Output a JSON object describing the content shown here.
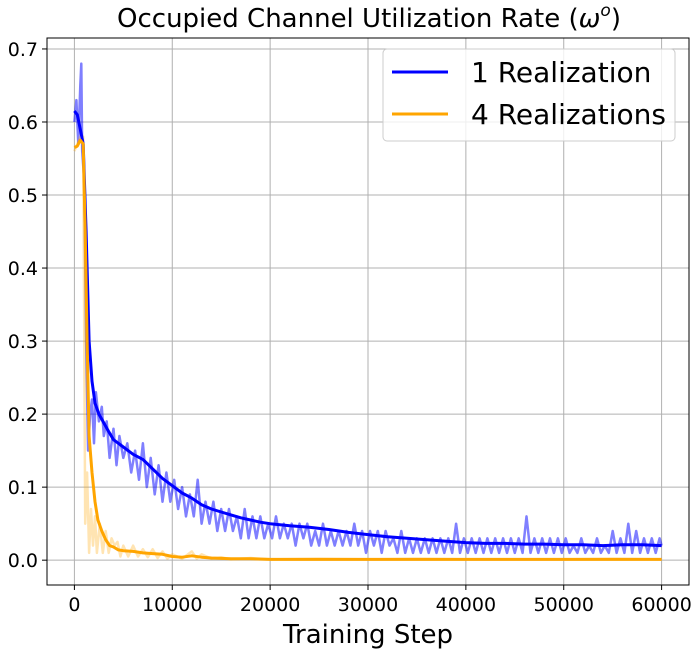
{
  "chart_data": {
    "type": "line",
    "title_main": "Occupied Channel Utilization Rate (",
    "title_symbol": "ω",
    "title_sup": "o",
    "title_close": ")",
    "xlabel": "Training Step",
    "ylabel": "",
    "xlim": [
      -2800,
      62800
    ],
    "ylim": [
      -0.034,
      0.715
    ],
    "xticks": [
      0,
      10000,
      20000,
      30000,
      40000,
      50000,
      60000
    ],
    "xtick_labels": [
      "0",
      "10000",
      "20000",
      "30000",
      "40000",
      "50000",
      "60000"
    ],
    "yticks": [
      0.0,
      0.1,
      0.2,
      0.3,
      0.4,
      0.5,
      0.6,
      0.7
    ],
    "ytick_labels": [
      "0.0",
      "0.1",
      "0.2",
      "0.3",
      "0.4",
      "0.5",
      "0.6",
      "0.7"
    ],
    "grid": true,
    "legend_position": "top-right",
    "series": [
      {
        "name": "1 Realization",
        "color": "#0000ff",
        "raw_opacity": 0.5,
        "smoothed": [
          [
            0,
            0.615
          ],
          [
            300,
            0.61
          ],
          [
            600,
            0.59
          ],
          [
            900,
            0.57
          ],
          [
            1200,
            0.45
          ],
          [
            1500,
            0.3
          ],
          [
            1800,
            0.245
          ],
          [
            2100,
            0.215
          ],
          [
            2500,
            0.2
          ],
          [
            3000,
            0.188
          ],
          [
            3500,
            0.176
          ],
          [
            4000,
            0.165
          ],
          [
            5000,
            0.155
          ],
          [
            6000,
            0.145
          ],
          [
            7000,
            0.138
          ],
          [
            8000,
            0.125
          ],
          [
            9000,
            0.112
          ],
          [
            10000,
            0.102
          ],
          [
            11000,
            0.092
          ],
          [
            12000,
            0.085
          ],
          [
            13000,
            0.076
          ],
          [
            14000,
            0.07
          ],
          [
            15000,
            0.066
          ],
          [
            16000,
            0.062
          ],
          [
            17000,
            0.058
          ],
          [
            18000,
            0.055
          ],
          [
            19000,
            0.052
          ],
          [
            20000,
            0.05
          ],
          [
            22000,
            0.047
          ],
          [
            24000,
            0.045
          ],
          [
            26000,
            0.042
          ],
          [
            28000,
            0.038
          ],
          [
            30000,
            0.035
          ],
          [
            32000,
            0.032
          ],
          [
            34000,
            0.03
          ],
          [
            36000,
            0.028
          ],
          [
            38000,
            0.026
          ],
          [
            40000,
            0.024
          ],
          [
            42000,
            0.023
          ],
          [
            44000,
            0.023
          ],
          [
            46000,
            0.022
          ],
          [
            48000,
            0.022
          ],
          [
            50000,
            0.021
          ],
          [
            52000,
            0.021
          ],
          [
            54000,
            0.02
          ],
          [
            56000,
            0.021
          ],
          [
            58000,
            0.021
          ],
          [
            60000,
            0.02
          ]
        ],
        "raw": [
          [
            0,
            0.6
          ],
          [
            200,
            0.63
          ],
          [
            400,
            0.57
          ],
          [
            600,
            0.65
          ],
          [
            700,
            0.68
          ],
          [
            800,
            0.56
          ],
          [
            1000,
            0.52
          ],
          [
            1200,
            0.3
          ],
          [
            1400,
            0.15
          ],
          [
            1600,
            0.2
          ],
          [
            1800,
            0.22
          ],
          [
            2000,
            0.16
          ],
          [
            2200,
            0.23
          ],
          [
            2500,
            0.19
          ],
          [
            2800,
            0.21
          ],
          [
            3000,
            0.17
          ],
          [
            3300,
            0.19
          ],
          [
            3600,
            0.14
          ],
          [
            4000,
            0.18
          ],
          [
            4300,
            0.13
          ],
          [
            4600,
            0.17
          ],
          [
            5000,
            0.14
          ],
          [
            5400,
            0.16
          ],
          [
            5800,
            0.12
          ],
          [
            6200,
            0.15
          ],
          [
            6600,
            0.11
          ],
          [
            7000,
            0.16
          ],
          [
            7400,
            0.1
          ],
          [
            7800,
            0.14
          ],
          [
            8200,
            0.09
          ],
          [
            8600,
            0.13
          ],
          [
            9000,
            0.08
          ],
          [
            9400,
            0.12
          ],
          [
            9800,
            0.08
          ],
          [
            10200,
            0.11
          ],
          [
            10600,
            0.07
          ],
          [
            11000,
            0.1
          ],
          [
            11400,
            0.06
          ],
          [
            11800,
            0.09
          ],
          [
            12200,
            0.06
          ],
          [
            12600,
            0.11
          ],
          [
            13000,
            0.05
          ],
          [
            13400,
            0.08
          ],
          [
            13800,
            0.05
          ],
          [
            14200,
            0.08
          ],
          [
            14600,
            0.04
          ],
          [
            15000,
            0.07
          ],
          [
            15400,
            0.04
          ],
          [
            15800,
            0.07
          ],
          [
            16200,
            0.04
          ],
          [
            16600,
            0.06
          ],
          [
            17000,
            0.03
          ],
          [
            17400,
            0.07
          ],
          [
            17800,
            0.03
          ],
          [
            18200,
            0.06
          ],
          [
            18600,
            0.03
          ],
          [
            19000,
            0.06
          ],
          [
            19400,
            0.03
          ],
          [
            19800,
            0.05
          ],
          [
            20200,
            0.03
          ],
          [
            20600,
            0.06
          ],
          [
            21000,
            0.03
          ],
          [
            21400,
            0.05
          ],
          [
            21800,
            0.03
          ],
          [
            22200,
            0.05
          ],
          [
            22600,
            0.02
          ],
          [
            23000,
            0.05
          ],
          [
            23400,
            0.03
          ],
          [
            23800,
            0.05
          ],
          [
            24200,
            0.02
          ],
          [
            24600,
            0.04
          ],
          [
            25000,
            0.02
          ],
          [
            25400,
            0.05
          ],
          [
            25800,
            0.02
          ],
          [
            26200,
            0.04
          ],
          [
            26600,
            0.02
          ],
          [
            27000,
            0.04
          ],
          [
            27400,
            0.02
          ],
          [
            27800,
            0.04
          ],
          [
            28200,
            0.02
          ],
          [
            28600,
            0.05
          ],
          [
            29000,
            0.02
          ],
          [
            29400,
            0.04
          ],
          [
            29800,
            0.01
          ],
          [
            30200,
            0.04
          ],
          [
            30600,
            0.02
          ],
          [
            31000,
            0.04
          ],
          [
            31400,
            0.01
          ],
          [
            31800,
            0.04
          ],
          [
            32200,
            0.02
          ],
          [
            32600,
            0.03
          ],
          [
            33000,
            0.01
          ],
          [
            33400,
            0.04
          ],
          [
            33800,
            0.01
          ],
          [
            34200,
            0.03
          ],
          [
            34600,
            0.01
          ],
          [
            35000,
            0.03
          ],
          [
            35400,
            0.01
          ],
          [
            35800,
            0.03
          ],
          [
            36200,
            0.01
          ],
          [
            36600,
            0.03
          ],
          [
            37000,
            0.01
          ],
          [
            37400,
            0.03
          ],
          [
            37800,
            0.01
          ],
          [
            38200,
            0.03
          ],
          [
            38600,
            0.01
          ],
          [
            39000,
            0.05
          ],
          [
            39400,
            0.01
          ],
          [
            39800,
            0.03
          ],
          [
            40200,
            0.01
          ],
          [
            40600,
            0.03
          ],
          [
            41000,
            0.01
          ],
          [
            41400,
            0.03
          ],
          [
            41800,
            0.01
          ],
          [
            42200,
            0.03
          ],
          [
            42600,
            0.01
          ],
          [
            43000,
            0.03
          ],
          [
            43400,
            0.01
          ],
          [
            43800,
            0.03
          ],
          [
            44200,
            0.01
          ],
          [
            44600,
            0.03
          ],
          [
            45000,
            0.01
          ],
          [
            45400,
            0.03
          ],
          [
            45800,
            0.01
          ],
          [
            46200,
            0.06
          ],
          [
            46600,
            0.01
          ],
          [
            47000,
            0.03
          ],
          [
            47400,
            0.01
          ],
          [
            47800,
            0.03
          ],
          [
            48200,
            0.01
          ],
          [
            48600,
            0.03
          ],
          [
            49000,
            0.01
          ],
          [
            49400,
            0.03
          ],
          [
            49800,
            0.01
          ],
          [
            50200,
            0.03
          ],
          [
            50600,
            0.01
          ],
          [
            51000,
            0.02
          ],
          [
            51400,
            0.01
          ],
          [
            51800,
            0.03
          ],
          [
            52200,
            0.01
          ],
          [
            52600,
            0.02
          ],
          [
            53000,
            0.01
          ],
          [
            53400,
            0.03
          ],
          [
            53800,
            0.01
          ],
          [
            54200,
            0.02
          ],
          [
            54600,
            0.01
          ],
          [
            55000,
            0.04
          ],
          [
            55400,
            0.01
          ],
          [
            55800,
            0.03
          ],
          [
            56200,
            0.01
          ],
          [
            56600,
            0.05
          ],
          [
            57000,
            0.01
          ],
          [
            57400,
            0.04
          ],
          [
            57800,
            0.01
          ],
          [
            58200,
            0.03
          ],
          [
            58600,
            0.01
          ],
          [
            59000,
            0.03
          ],
          [
            59400,
            0.01
          ],
          [
            59800,
            0.03
          ],
          [
            60000,
            0.02
          ]
        ]
      },
      {
        "name": "4 Realizations",
        "color": "#ffa500",
        "raw_opacity": 0.3,
        "smoothed": [
          [
            0,
            0.565
          ],
          [
            300,
            0.567
          ],
          [
            600,
            0.575
          ],
          [
            900,
            0.57
          ],
          [
            1100,
            0.45
          ],
          [
            1300,
            0.3
          ],
          [
            1500,
            0.17
          ],
          [
            1800,
            0.12
          ],
          [
            2100,
            0.08
          ],
          [
            2400,
            0.055
          ],
          [
            2800,
            0.04
          ],
          [
            3200,
            0.028
          ],
          [
            3600,
            0.02
          ],
          [
            4000,
            0.018
          ],
          [
            4500,
            0.014
          ],
          [
            5000,
            0.013
          ],
          [
            6000,
            0.012
          ],
          [
            7000,
            0.01
          ],
          [
            8000,
            0.009
          ],
          [
            9000,
            0.008
          ],
          [
            10000,
            0.005
          ],
          [
            11000,
            0.004
          ],
          [
            12000,
            0.006
          ],
          [
            13000,
            0.004
          ],
          [
            14000,
            0.003
          ],
          [
            16000,
            0.002
          ],
          [
            18000,
            0.002
          ],
          [
            20000,
            0.001
          ],
          [
            25000,
            0.001
          ],
          [
            30000,
            0.001
          ],
          [
            35000,
            0.001
          ],
          [
            40000,
            0.001
          ],
          [
            45000,
            0.001
          ],
          [
            50000,
            0.001
          ],
          [
            55000,
            0.001
          ],
          [
            60000,
            0.001
          ]
        ],
        "raw": [
          [
            0,
            0.56
          ],
          [
            300,
            0.57
          ],
          [
            600,
            0.58
          ],
          [
            900,
            0.58
          ],
          [
            1100,
            0.05
          ],
          [
            1300,
            0.12
          ],
          [
            1500,
            0.01
          ],
          [
            1700,
            0.07
          ],
          [
            1900,
            0.02
          ],
          [
            2100,
            0.06
          ],
          [
            2300,
            0.01
          ],
          [
            2600,
            0.05
          ],
          [
            2900,
            0.01
          ],
          [
            3200,
            0.04
          ],
          [
            3500,
            0.01
          ],
          [
            3800,
            0.03
          ],
          [
            4100,
            0.02
          ],
          [
            4400,
            0.025
          ],
          [
            4700,
            0.005
          ],
          [
            5000,
            0.02
          ],
          [
            5500,
            0.005
          ],
          [
            6000,
            0.02
          ],
          [
            6500,
            0.005
          ],
          [
            7000,
            0.015
          ],
          [
            7500,
            0.004
          ],
          [
            8000,
            0.015
          ],
          [
            8500,
            0.003
          ],
          [
            9000,
            0.012
          ],
          [
            9500,
            0.002
          ],
          [
            10000,
            0.008
          ],
          [
            11000,
            0.002
          ],
          [
            12000,
            0.012
          ],
          [
            12500,
            0.002
          ],
          [
            13000,
            0.008
          ],
          [
            14000,
            0.002
          ],
          [
            15000,
            0.004
          ],
          [
            16000,
            0.001
          ],
          [
            18000,
            0.003
          ],
          [
            20000,
            0.001
          ],
          [
            25000,
            0.002
          ],
          [
            30000,
            0.001
          ],
          [
            35000,
            0.002
          ],
          [
            40000,
            0.001
          ],
          [
            45000,
            0.001
          ],
          [
            50000,
            0.001
          ],
          [
            55000,
            0.002
          ],
          [
            60000,
            0.001
          ]
        ]
      }
    ]
  }
}
